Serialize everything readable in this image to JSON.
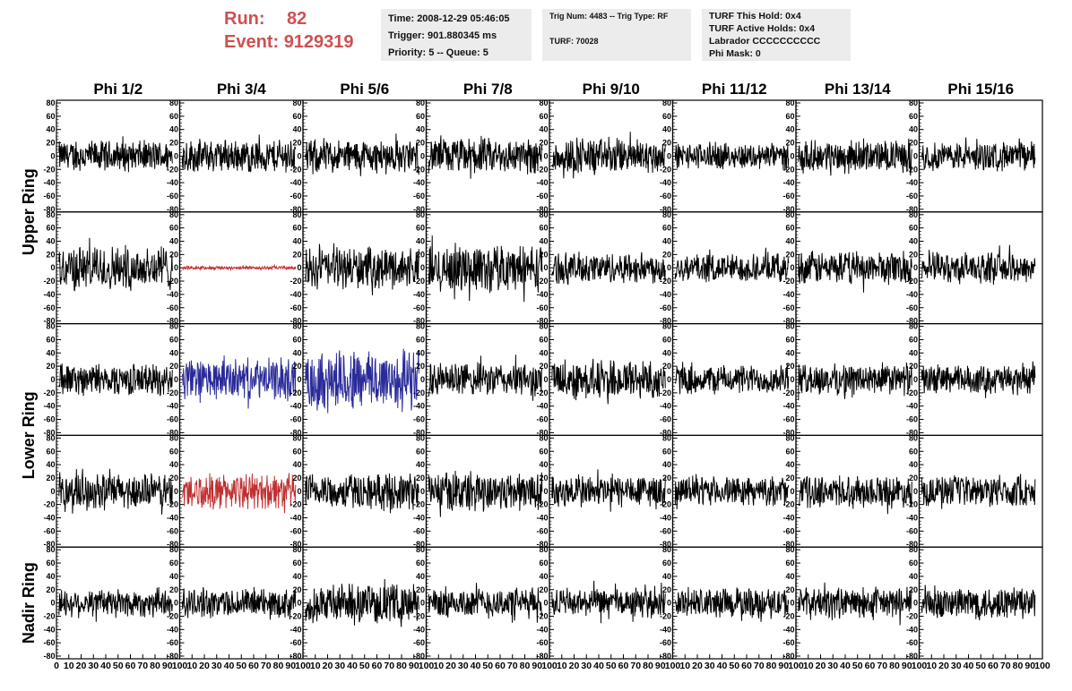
{
  "header": {
    "run_label": "Run:",
    "run_value": "82",
    "event_label": "Event:",
    "event_value": "9129319",
    "time": "Time: 2008-12-29 05:46:05",
    "trigger": "Trigger: 901.880345 ms",
    "priority": "Priority: 5 -- Queue: 5",
    "trig_num": "Trig Num: 4483 -- Trig Type: RF",
    "turf": "TURF: 70028",
    "turf_hold": "TURF This Hold: 0x4",
    "turf_active": "TURF Active Holds: 0x4",
    "labrador": "Labrador CCCCCCCCCC",
    "phi_mask": "Phi Mask: 0"
  },
  "chart_data": {
    "type": "line",
    "columns": [
      "Phi 1/2",
      "Phi 3/4",
      "Phi 5/6",
      "Phi 7/8",
      "Phi 9/10",
      "Phi 11/12",
      "Phi 13/14",
      "Phi 15/16"
    ],
    "rows": [
      "Upper Ring",
      "Lower Ring",
      "Nadir Ring"
    ],
    "ylim": [
      -80,
      80
    ],
    "yticks": [
      "80",
      "60",
      "40",
      "20",
      "0",
      "-20",
      "-40",
      "-60",
      "-80"
    ],
    "xlim": [
      0,
      100
    ],
    "xticks_first": [
      "0",
      "10",
      "20",
      "30",
      "40",
      "50",
      "60",
      "70",
      "80",
      "90",
      "100"
    ],
    "xticks_other": [
      "10",
      "20",
      "30",
      "40",
      "50",
      "60",
      "70",
      "80",
      "90",
      "100"
    ],
    "samples_per_trace": 260,
    "colors": {
      "default": "#000000",
      "red": "#c03030",
      "blue": "#2a2a9a"
    },
    "traces": [
      [
        {
          "amp": 26,
          "color": "default"
        },
        {
          "amp": 28,
          "color": "default"
        },
        {
          "amp": 28,
          "color": "default"
        },
        {
          "amp": 30,
          "color": "default"
        },
        {
          "amp": 30,
          "color": "default"
        },
        {
          "amp": 22,
          "color": "default"
        },
        {
          "amp": 26,
          "color": "default"
        },
        {
          "amp": 24,
          "color": "default"
        }
      ],
      [
        {
          "amp": 38,
          "color": "default"
        },
        {
          "amp": 3,
          "color": "red"
        },
        {
          "amp": 34,
          "color": "default"
        },
        {
          "amp": 40,
          "color": "default"
        },
        {
          "amp": 26,
          "color": "default"
        },
        {
          "amp": 24,
          "color": "default"
        },
        {
          "amp": 28,
          "color": "default"
        },
        {
          "amp": 26,
          "color": "default"
        }
      ],
      [
        {
          "amp": 26,
          "color": "default"
        },
        {
          "amp": 34,
          "color": "blue"
        },
        {
          "amp": 52,
          "color": "blue"
        },
        {
          "amp": 28,
          "color": "default"
        },
        {
          "amp": 34,
          "color": "default"
        },
        {
          "amp": 24,
          "color": "default"
        },
        {
          "amp": 26,
          "color": "default"
        },
        {
          "amp": 24,
          "color": "default"
        }
      ],
      [
        {
          "amp": 30,
          "color": "default"
        },
        {
          "amp": 30,
          "color": "red"
        },
        {
          "amp": 30,
          "color": "default"
        },
        {
          "amp": 34,
          "color": "default"
        },
        {
          "amp": 28,
          "color": "default"
        },
        {
          "amp": 24,
          "color": "default"
        },
        {
          "amp": 26,
          "color": "default"
        },
        {
          "amp": 26,
          "color": "default"
        }
      ],
      [
        {
          "amp": 24,
          "color": "default"
        },
        {
          "amp": 24,
          "color": "default"
        },
        {
          "amp": 32,
          "color": "default"
        },
        {
          "amp": 26,
          "color": "default"
        },
        {
          "amp": 24,
          "color": "default"
        },
        {
          "amp": 26,
          "color": "default"
        },
        {
          "amp": 26,
          "color": "default"
        },
        {
          "amp": 28,
          "color": "default"
        }
      ]
    ]
  }
}
